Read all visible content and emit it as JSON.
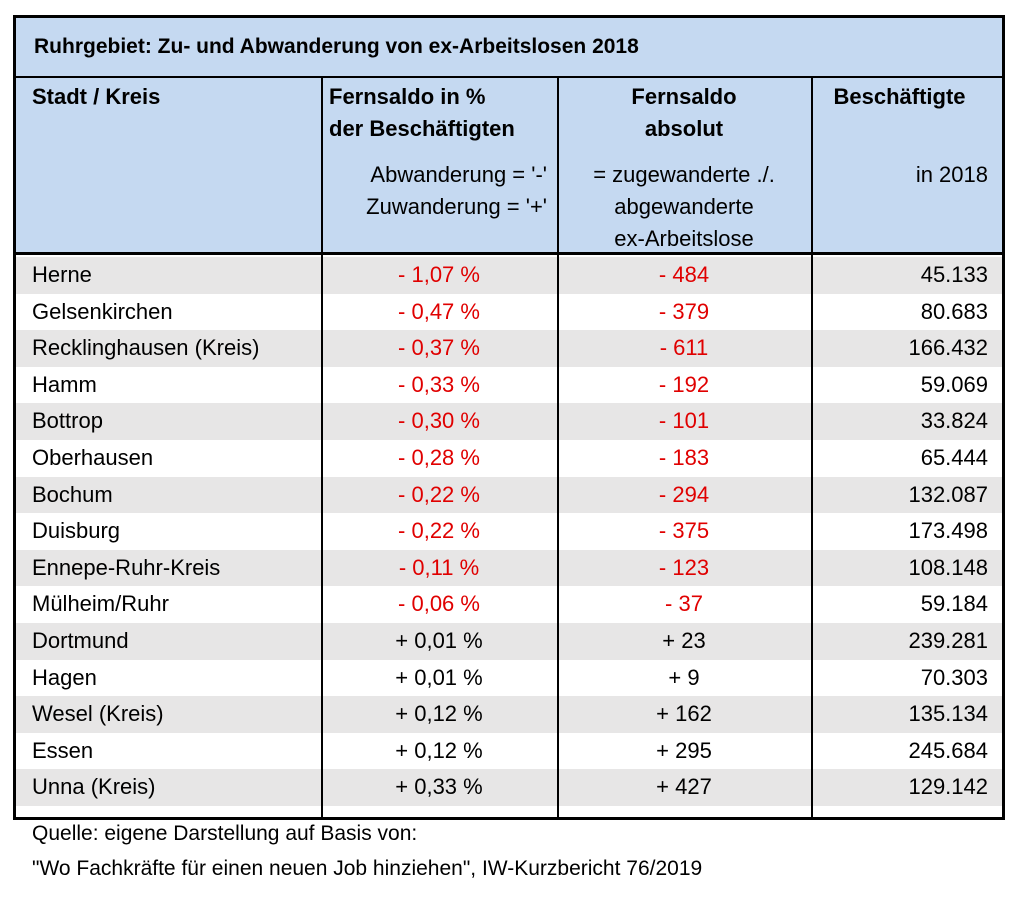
{
  "title": "Ruhrgebiet: Zu- und Abwanderung von ex-Arbeitslosen 2018",
  "header": {
    "columns": [
      {
        "title_lines": [
          "Stadt / Kreis"
        ],
        "note_lines": []
      },
      {
        "title_lines": [
          "Fernsaldo in %",
          "der Beschäftigten"
        ],
        "note_lines": [
          "Abwanderung = '-'",
          "Zuwanderung = '+'"
        ]
      },
      {
        "title_lines": [
          "Fernsaldo",
          "absolut"
        ],
        "note_lines": [
          "= zugewanderte ./.",
          "abgewanderte",
          "ex-Arbeitslose"
        ]
      },
      {
        "title_lines": [
          "Beschäftigte"
        ],
        "note_lines": [
          "in 2018"
        ]
      }
    ]
  },
  "table": {
    "rows": [
      [
        "Herne",
        "- 1,07 %",
        "- 484",
        "45.133"
      ],
      [
        "Gelsenkirchen",
        "- 0,47 %",
        "- 379",
        "80.683"
      ],
      [
        "Recklinghausen (Kreis)",
        "- 0,37 %",
        "- 611",
        "166.432"
      ],
      [
        "Hamm",
        "- 0,33 %",
        "- 192",
        "59.069"
      ],
      [
        "Bottrop",
        "- 0,30 %",
        "- 101",
        "33.824"
      ],
      [
        "Oberhausen",
        "- 0,28 %",
        "- 183",
        "65.444"
      ],
      [
        "Bochum",
        "- 0,22 %",
        "- 294",
        "132.087"
      ],
      [
        "Duisburg",
        "- 0,22 %",
        "- 375",
        "173.498"
      ],
      [
        "Ennepe-Ruhr-Kreis",
        "- 0,11 %",
        "- 123",
        "108.148"
      ],
      [
        "Mülheim/Ruhr",
        "- 0,06 %",
        "- 37",
        "59.184"
      ],
      [
        "Dortmund",
        "+ 0,01 %",
        "+ 23",
        "239.281"
      ],
      [
        "Hagen",
        "+ 0,01 %",
        "+ 9",
        "70.303"
      ],
      [
        "Wesel (Kreis)",
        "+ 0,12 %",
        "+ 162",
        "135.134"
      ],
      [
        "Essen",
        "+ 0,12 %",
        "+ 295",
        "245.684"
      ],
      [
        "Unna (Kreis)",
        "+ 0,33 %",
        "+ 427",
        "129.142"
      ]
    ]
  },
  "footer": {
    "lines": [
      "Quelle: eigene Darstellung auf Basis von:",
      "\"Wo Fachkräfte für einen neuen Job hinziehen\", IW-Kurzbericht 76/2019"
    ]
  }
}
